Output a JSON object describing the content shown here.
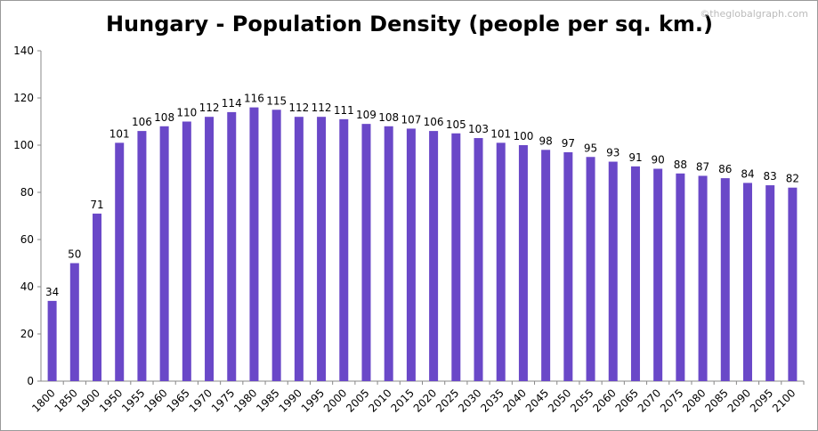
{
  "chart_data": {
    "type": "bar",
    "title": "Hungary - Population Density (people per sq. km.)",
    "watermark": "©theglobalgraph.com",
    "categories": [
      "1800",
      "1850",
      "1900",
      "1950",
      "1955",
      "1960",
      "1965",
      "1970",
      "1975",
      "1980",
      "1985",
      "1990",
      "1995",
      "2000",
      "2005",
      "2010",
      "2015",
      "2020",
      "2025",
      "2030",
      "2035",
      "2040",
      "2045",
      "2050",
      "2055",
      "2060",
      "2065",
      "2070",
      "2075",
      "2080",
      "2085",
      "2090",
      "2095",
      "2100"
    ],
    "values": [
      34,
      50,
      71,
      101,
      106,
      108,
      110,
      112,
      114,
      116,
      115,
      112,
      112,
      111,
      109,
      108,
      107,
      106,
      105,
      103,
      101,
      100,
      98,
      97,
      95,
      93,
      91,
      90,
      88,
      87,
      86,
      84,
      83,
      82
    ],
    "color": "#6a48c8",
    "ylim": [
      0,
      140
    ],
    "yticks": [
      0,
      20,
      40,
      60,
      80,
      100,
      120,
      140
    ],
    "grid": false
  }
}
